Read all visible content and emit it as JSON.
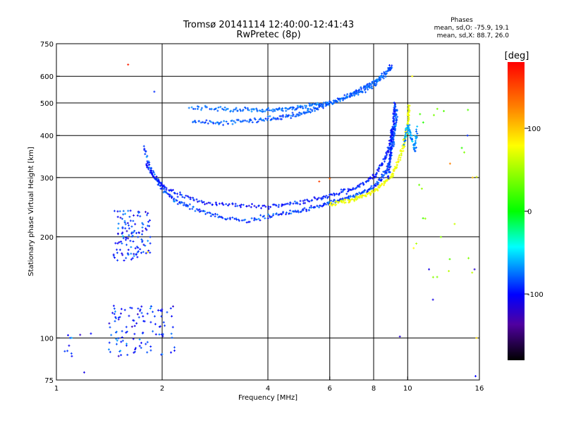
{
  "chart_data": {
    "type": "scatter",
    "title": "Tromsø 20141114 12:40:00-12:41:43",
    "subtitle": "RwPretec (8p)",
    "stats": {
      "heading": "Phases",
      "line1": "mean, sd,O: -75.9, 19.1",
      "line2": "mean, sd,X:  88.7, 26.0"
    },
    "xlabel": "Frequency [MHz]",
    "ylabel": "Stationary phase Virtual Height [km]",
    "x_scale": "log",
    "y_scale": "log",
    "xlim": [
      1,
      16
    ],
    "ylim": [
      75,
      750
    ],
    "x_ticks": [
      1,
      2,
      4,
      6,
      8,
      10,
      16
    ],
    "x_tick_labels": [
      "1",
      "2",
      "4",
      "6",
      "8",
      "10",
      "16"
    ],
    "y_ticks": [
      75,
      100,
      200,
      300,
      400,
      500,
      600,
      750
    ],
    "y_tick_labels": [
      "75",
      "100",
      "200",
      "300",
      "400",
      "500",
      "600",
      "750"
    ],
    "grid": true,
    "colorbar": {
      "label": "[deg]",
      "min": -180,
      "max": 180,
      "ticks": [
        100,
        0,
        -100
      ],
      "tick_labels": [
        "100",
        "0",
        "-100"
      ]
    },
    "traces": [
      {
        "name_hint": "o-f-lower",
        "phase": -85,
        "spread": 30,
        "points": [
          [
            1.78,
            370
          ],
          [
            1.85,
            320
          ],
          [
            1.95,
            290
          ],
          [
            2.05,
            270
          ],
          [
            2.2,
            255
          ],
          [
            2.4,
            245
          ],
          [
            2.7,
            235
          ],
          [
            3.0,
            228
          ],
          [
            3.5,
            224
          ],
          [
            4.0,
            230
          ],
          [
            4.5,
            236
          ],
          [
            5.0,
            240
          ],
          [
            5.5,
            246
          ],
          [
            6.0,
            252
          ],
          [
            6.5,
            258
          ],
          [
            7.0,
            264
          ],
          [
            7.5,
            272
          ],
          [
            8.0,
            282
          ],
          [
            8.4,
            296
          ],
          [
            8.7,
            315
          ],
          [
            8.9,
            340
          ],
          [
            9.05,
            370
          ],
          [
            9.15,
            400
          ],
          [
            9.25,
            440
          ],
          [
            9.3,
            480
          ]
        ]
      },
      {
        "name_hint": "o-f-upper",
        "phase": -95,
        "spread": 25,
        "points": [
          [
            1.8,
            330
          ],
          [
            1.9,
            300
          ],
          [
            2.0,
            285
          ],
          [
            2.2,
            268
          ],
          [
            2.5,
            258
          ],
          [
            2.9,
            250
          ],
          [
            3.4,
            248
          ],
          [
            4.0,
            246
          ],
          [
            4.6,
            250
          ],
          [
            5.2,
            256
          ],
          [
            5.8,
            262
          ],
          [
            6.4,
            270
          ],
          [
            7.0,
            278
          ],
          [
            7.6,
            290
          ],
          [
            8.1,
            305
          ],
          [
            8.5,
            330
          ],
          [
            8.8,
            360
          ],
          [
            9.0,
            400
          ],
          [
            9.1,
            430
          ]
        ]
      },
      {
        "name_hint": "x-f",
        "phase": 90,
        "spread": 30,
        "points": [
          [
            6.0,
            250
          ],
          [
            6.5,
            254
          ],
          [
            7.0,
            258
          ],
          [
            7.5,
            264
          ],
          [
            8.0,
            272
          ],
          [
            8.5,
            286
          ],
          [
            9.0,
            305
          ],
          [
            9.3,
            325
          ],
          [
            9.6,
            355
          ],
          [
            9.8,
            385
          ],
          [
            9.95,
            420
          ],
          [
            10.05,
            455
          ],
          [
            10.1,
            490
          ]
        ]
      },
      {
        "name_hint": "e-layer-trace",
        "phase": -80,
        "spread": 20,
        "points": [
          [
            2.45,
            440
          ],
          [
            2.8,
            438
          ],
          [
            3.2,
            440
          ],
          [
            3.6,
            442
          ],
          [
            4.0,
            448
          ],
          [
            4.4,
            452
          ],
          [
            4.8,
            460
          ],
          [
            5.2,
            470
          ],
          [
            5.6,
            485
          ],
          [
            6.0,
            500
          ],
          [
            6.5,
            518
          ],
          [
            7.0,
            535
          ],
          [
            7.5,
            556
          ],
          [
            8.0,
            578
          ],
          [
            8.4,
            600
          ],
          [
            8.8,
            625
          ],
          [
            9.0,
            640
          ]
        ]
      },
      {
        "name_hint": "e-layer-upper",
        "phase": -75,
        "spread": 20,
        "points": [
          [
            2.4,
            485
          ],
          [
            2.8,
            482
          ],
          [
            3.2,
            478
          ],
          [
            3.6,
            476
          ],
          [
            4.0,
            476
          ],
          [
            4.4,
            478
          ],
          [
            4.8,
            482
          ],
          [
            5.2,
            488
          ],
          [
            5.6,
            495
          ],
          [
            6.2,
            505
          ],
          [
            6.8,
            520
          ],
          [
            7.4,
            540
          ],
          [
            8.0,
            565
          ],
          [
            8.6,
            600
          ]
        ]
      },
      {
        "name_hint": "steep-branch",
        "phase": -90,
        "spread": 30,
        "points": [
          [
            8.8,
            300
          ],
          [
            8.9,
            340
          ],
          [
            9.0,
            380
          ],
          [
            9.1,
            420
          ],
          [
            9.15,
            470
          ],
          [
            9.2,
            500
          ]
        ]
      },
      {
        "name_hint": "scatter-right",
        "phase": -60,
        "spread": 40,
        "points": [
          [
            9.8,
            380
          ],
          [
            10.0,
            430
          ],
          [
            10.2,
            400
          ],
          [
            10.5,
            360
          ],
          [
            10.6,
            420
          ]
        ]
      }
    ],
    "clusters": [
      {
        "name_hint": "cluster-200",
        "x": [
          1.45,
          1.85
        ],
        "y": [
          170,
          240
        ],
        "phase": -90,
        "count": 120
      },
      {
        "name_hint": "cluster-low",
        "x": [
          1.4,
          2.2
        ],
        "y": [
          88,
          125
        ],
        "phase": -90,
        "count": 110
      },
      {
        "name_hint": "cluster-left",
        "x": [
          1.05,
          1.3
        ],
        "y": [
          88,
          105
        ],
        "phase": -95,
        "count": 10
      },
      {
        "name_hint": "cluster-right-sparse",
        "x": [
          10.0,
          15.8
        ],
        "y": [
          150,
          500
        ],
        "phase": 40,
        "count": 22
      }
    ],
    "isolated_points": [
      [
        1.6,
        650,
        170
      ],
      [
        1.82,
        180,
        110
      ],
      [
        1.9,
        540,
        -90
      ],
      [
        10.3,
        600,
        100
      ],
      [
        10.4,
        185,
        100
      ],
      [
        11.5,
        160,
        -110
      ],
      [
        11.8,
        130,
        -110
      ],
      [
        15.5,
        160,
        -120
      ],
      [
        15.6,
        77,
        -100
      ],
      [
        15.7,
        100,
        110
      ],
      [
        15.3,
        300,
        120
      ],
      [
        14.8,
        400,
        -90
      ],
      [
        13.2,
        330,
        140
      ],
      [
        9.5,
        101,
        -120
      ],
      [
        5.6,
        292,
        160
      ],
      [
        6.0,
        298,
        150
      ],
      [
        1.2,
        79,
        -110
      ]
    ]
  }
}
